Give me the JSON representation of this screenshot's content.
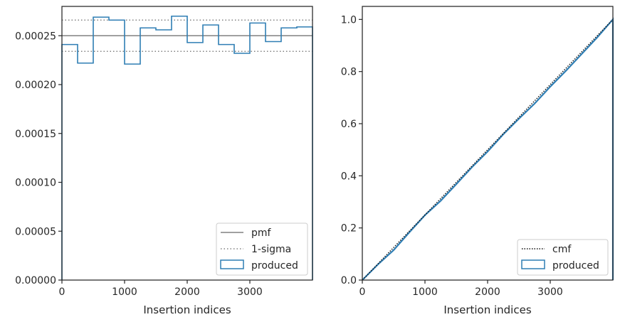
{
  "chart_data": [
    {
      "type": "step-histogram",
      "xlabel": "Insertion indices",
      "ylabel": "",
      "xlim": [
        0,
        4000
      ],
      "ylim": [
        0,
        0.00028
      ],
      "x_ticks": [
        0,
        1000,
        2000,
        3000
      ],
      "x_tick_labels": [
        "0",
        "1000",
        "2000",
        "3000"
      ],
      "y_ticks": [
        0,
        5e-05,
        0.0001,
        0.00015,
        0.0002,
        0.00025
      ],
      "y_tick_labels": [
        "0.00000",
        "0.00005",
        "0.00010",
        "0.00015",
        "0.00020",
        "0.00025"
      ],
      "pmf_level": 0.00025,
      "sigma_band": [
        0.000234,
        0.000266
      ],
      "bin_edges": [
        0,
        250,
        500,
        750,
        1000,
        1250,
        1500,
        1750,
        2000,
        2250,
        2500,
        2750,
        3000,
        3250,
        3500,
        3750,
        4000
      ],
      "produced_values": [
        0.000241,
        0.000222,
        0.000269,
        0.000266,
        0.000221,
        0.000258,
        0.000256,
        0.00027,
        0.000243,
        0.000261,
        0.000241,
        0.000232,
        0.000263,
        0.000244,
        0.000258,
        0.000259
      ],
      "legend": {
        "placement": "lower-right",
        "entries": [
          {
            "label": "pmf",
            "style": "solid",
            "color": "#808080"
          },
          {
            "label": "1-sigma",
            "style": "dotted",
            "color": "#808080"
          },
          {
            "label": "produced",
            "style": "box",
            "color": "#2f7eb4"
          }
        ]
      },
      "grid": false
    },
    {
      "type": "step-cumulative",
      "xlabel": "Insertion indices",
      "ylabel": "",
      "xlim": [
        0,
        4000
      ],
      "ylim": [
        0,
        1.05
      ],
      "x_ticks": [
        0,
        1000,
        2000,
        3000
      ],
      "x_tick_labels": [
        "0",
        "1000",
        "2000",
        "3000"
      ],
      "y_ticks": [
        0,
        0.2,
        0.4,
        0.6,
        0.8,
        1.0
      ],
      "y_tick_labels": [
        "0.0",
        "0.2",
        "0.4",
        "0.6",
        "0.8",
        "1.0"
      ],
      "cmf_x": [
        0,
        4000
      ],
      "cmf_y": [
        0,
        1
      ],
      "produced_x": [
        0,
        250,
        500,
        750,
        1000,
        1250,
        1500,
        1750,
        2000,
        2250,
        2500,
        2750,
        3000,
        3250,
        3500,
        3750,
        4000
      ],
      "produced_y": [
        0,
        0.06,
        0.115,
        0.183,
        0.249,
        0.304,
        0.368,
        0.433,
        0.493,
        0.559,
        0.619,
        0.677,
        0.742,
        0.803,
        0.867,
        0.931,
        1.0
      ],
      "legend": {
        "placement": "lower-right",
        "entries": [
          {
            "label": "cmf",
            "style": "dotted",
            "color": "#111111"
          },
          {
            "label": "produced",
            "style": "box",
            "color": "#2f7eb4"
          }
        ]
      },
      "grid": false
    }
  ]
}
